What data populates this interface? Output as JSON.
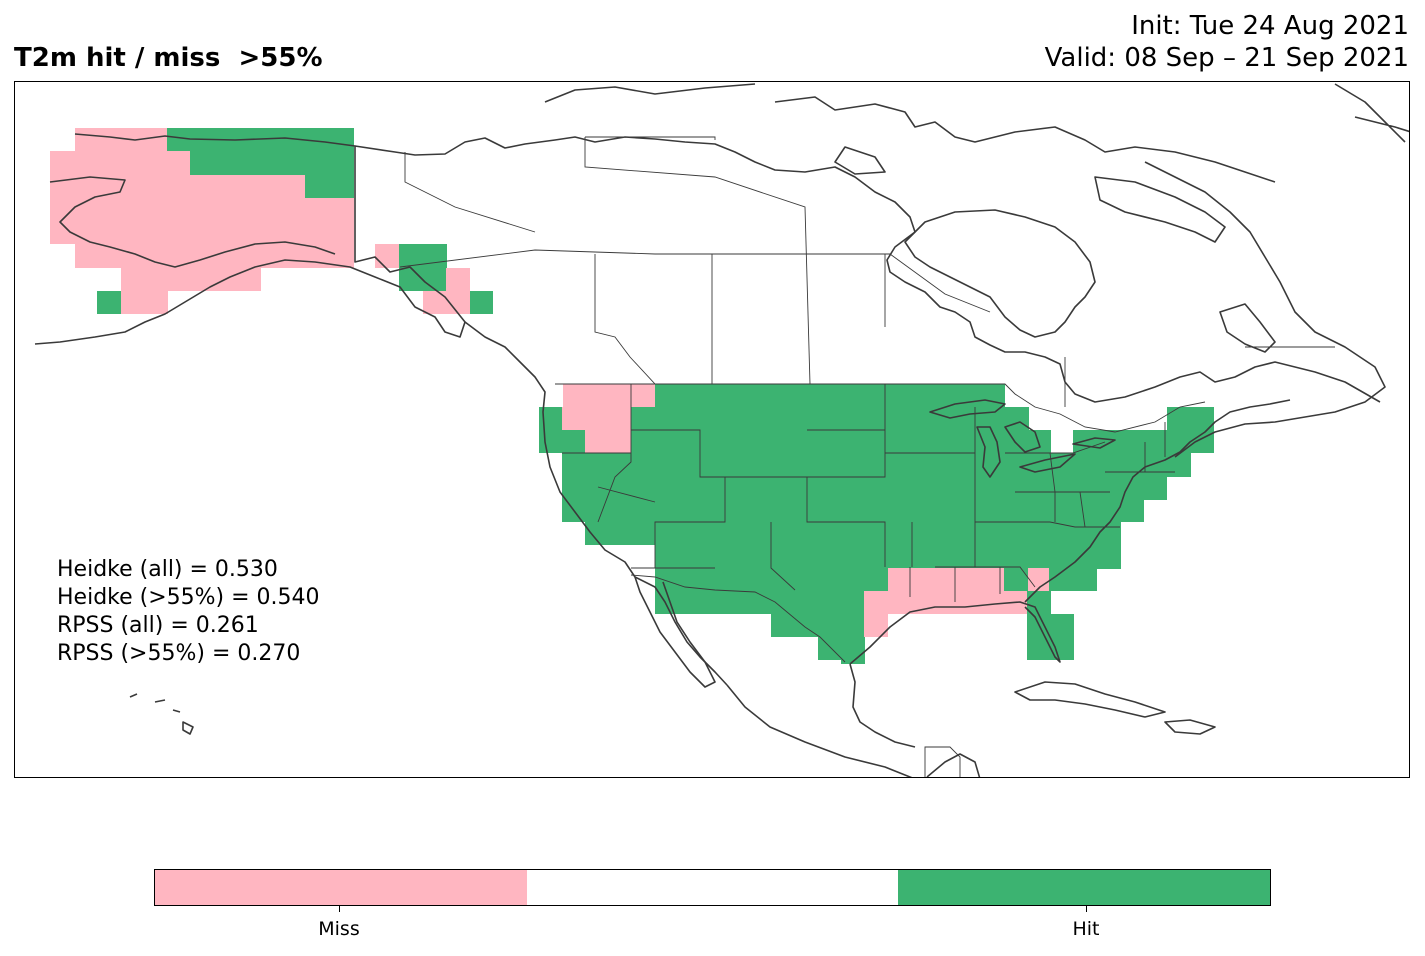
{
  "title": "T2m hit / miss  >55%",
  "init": "Init: Tue 24 Aug 2021",
  "valid": "Valid: 08 Sep – 21 Sep 2021",
  "stats": [
    "Heidke (all) = 0.530",
    "Heidke (>55%) = 0.540",
    "RPSS (all) = 0.261",
    "RPSS (>55%) = 0.270"
  ],
  "legend": {
    "miss_label": "Miss",
    "hit_label": "Hit",
    "miss_color": "#ffb6c1",
    "neutral_color": "#ffffff",
    "hit_color": "#3cb371"
  },
  "outline_color": "#3a3a3a"
}
